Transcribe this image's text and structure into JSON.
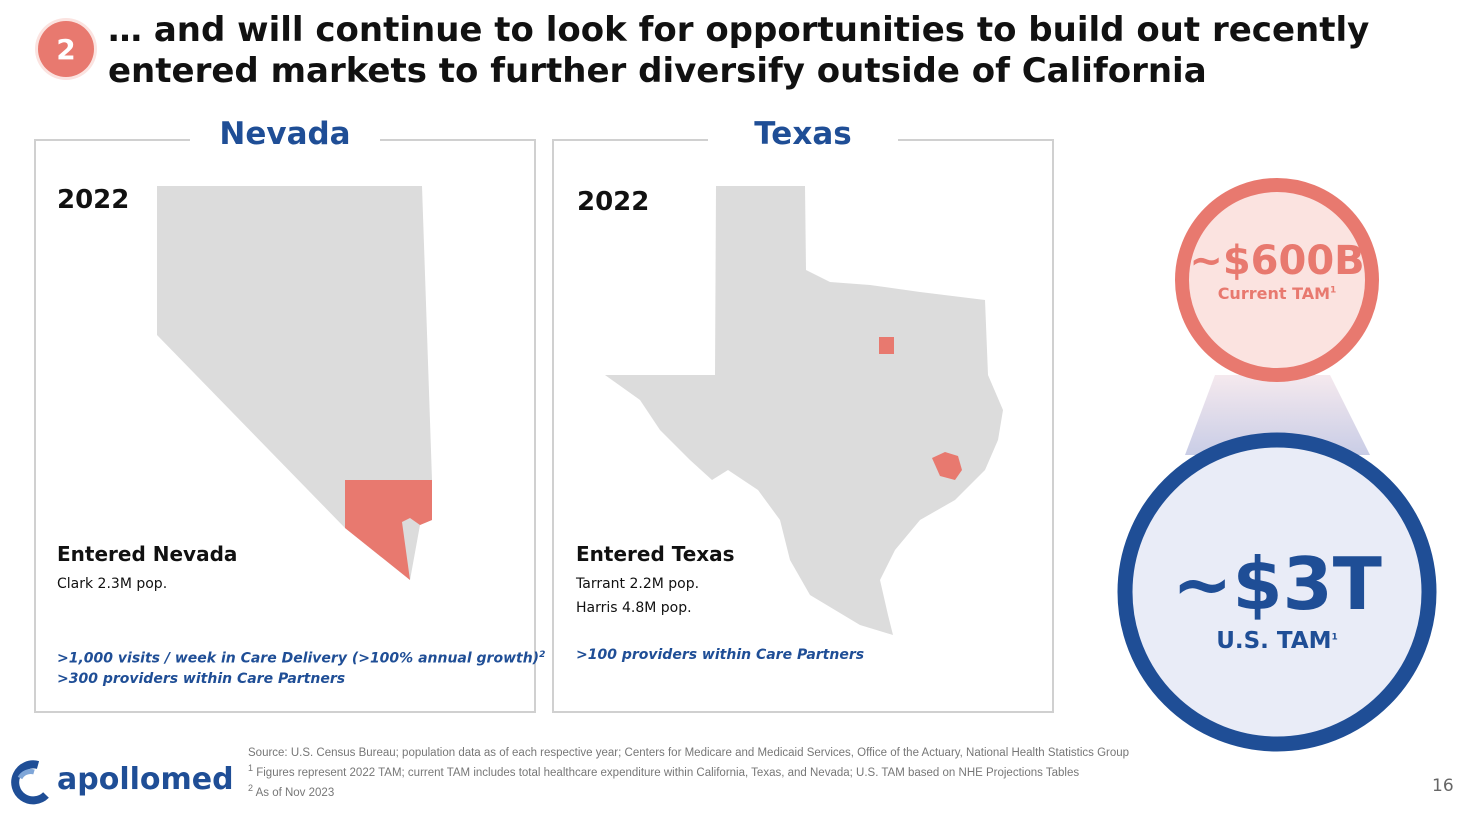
{
  "badge": "2",
  "title": "… and will continue to look for opportunities to build out recently entered markets to further diversify outside of California",
  "panels": [
    {
      "state": "Nevada",
      "year": "2022",
      "heading": "Entered Nevada",
      "facts": [
        "Clark 2.3M pop."
      ],
      "highlights": [
        {
          "text": ">1,000 visits / week in Care Delivery (>100% annual growth)",
          "note": "2"
        },
        {
          "text": ">300 providers within Care Partners"
        }
      ]
    },
    {
      "state": "Texas",
      "year": "2022",
      "heading": "Entered Texas",
      "facts": [
        "Tarrant 2.2M pop.",
        "Harris 4.8M pop."
      ],
      "highlights": [
        {
          "text": ">100 providers within Care Partners"
        }
      ]
    }
  ],
  "tam": {
    "current": {
      "value": "~$600B",
      "label": "Current TAM",
      "note": "1"
    },
    "us": {
      "value": "~$3T",
      "label": "U.S. TAM",
      "note": "1"
    }
  },
  "footnotes": [
    {
      "text": "Source: U.S. Census Bureau; population data as of each respective year; Centers for Medicare and Medicaid Services, Office of the Actuary, National Health Statistics Group"
    },
    {
      "note": "1",
      "text": "Figures represent 2022 TAM; current TAM includes total healthcare expenditure within California, Texas, and Nevada; U.S. TAM based on NHE Projections Tables"
    },
    {
      "note": "2",
      "text": "As of Nov 2023"
    }
  ],
  "logo": "apollomed",
  "page_number": "16"
}
